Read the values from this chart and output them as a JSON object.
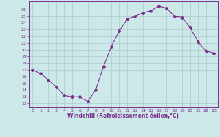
{
  "x": [
    0,
    1,
    2,
    3,
    4,
    5,
    6,
    7,
    8,
    9,
    10,
    11,
    12,
    13,
    14,
    15,
    16,
    17,
    18,
    19,
    20,
    21,
    22,
    23
  ],
  "y": [
    17.0,
    16.5,
    15.5,
    14.5,
    13.2,
    13.0,
    13.0,
    12.3,
    14.0,
    17.5,
    20.5,
    22.8,
    24.5,
    25.0,
    25.5,
    25.8,
    26.5,
    26.2,
    25.0,
    24.8,
    23.3,
    21.2,
    19.8,
    19.5
  ],
  "line_color": "#7b2d8b",
  "marker": "D",
  "marker_size": 2.0,
  "bg_color": "#cce8e8",
  "grid_color": "#aacccc",
  "xlabel": "Windchill (Refroidissement éolien,°C)",
  "xlabel_color": "#7b2d8b",
  "ylabel_ticks": [
    12,
    13,
    14,
    15,
    16,
    17,
    18,
    19,
    20,
    21,
    22,
    23,
    24,
    25,
    26
  ],
  "ylim": [
    11.5,
    27.2
  ],
  "xlim": [
    -0.5,
    23.5
  ],
  "xticks": [
    0,
    1,
    2,
    3,
    4,
    5,
    6,
    7,
    8,
    9,
    10,
    11,
    12,
    13,
    14,
    15,
    16,
    17,
    18,
    19,
    20,
    21,
    22,
    23
  ],
  "tick_color": "#7b2d8b",
  "spine_color": "#7b2d8b",
  "tick_fontsize": 4.5,
  "xlabel_fontsize": 5.5
}
